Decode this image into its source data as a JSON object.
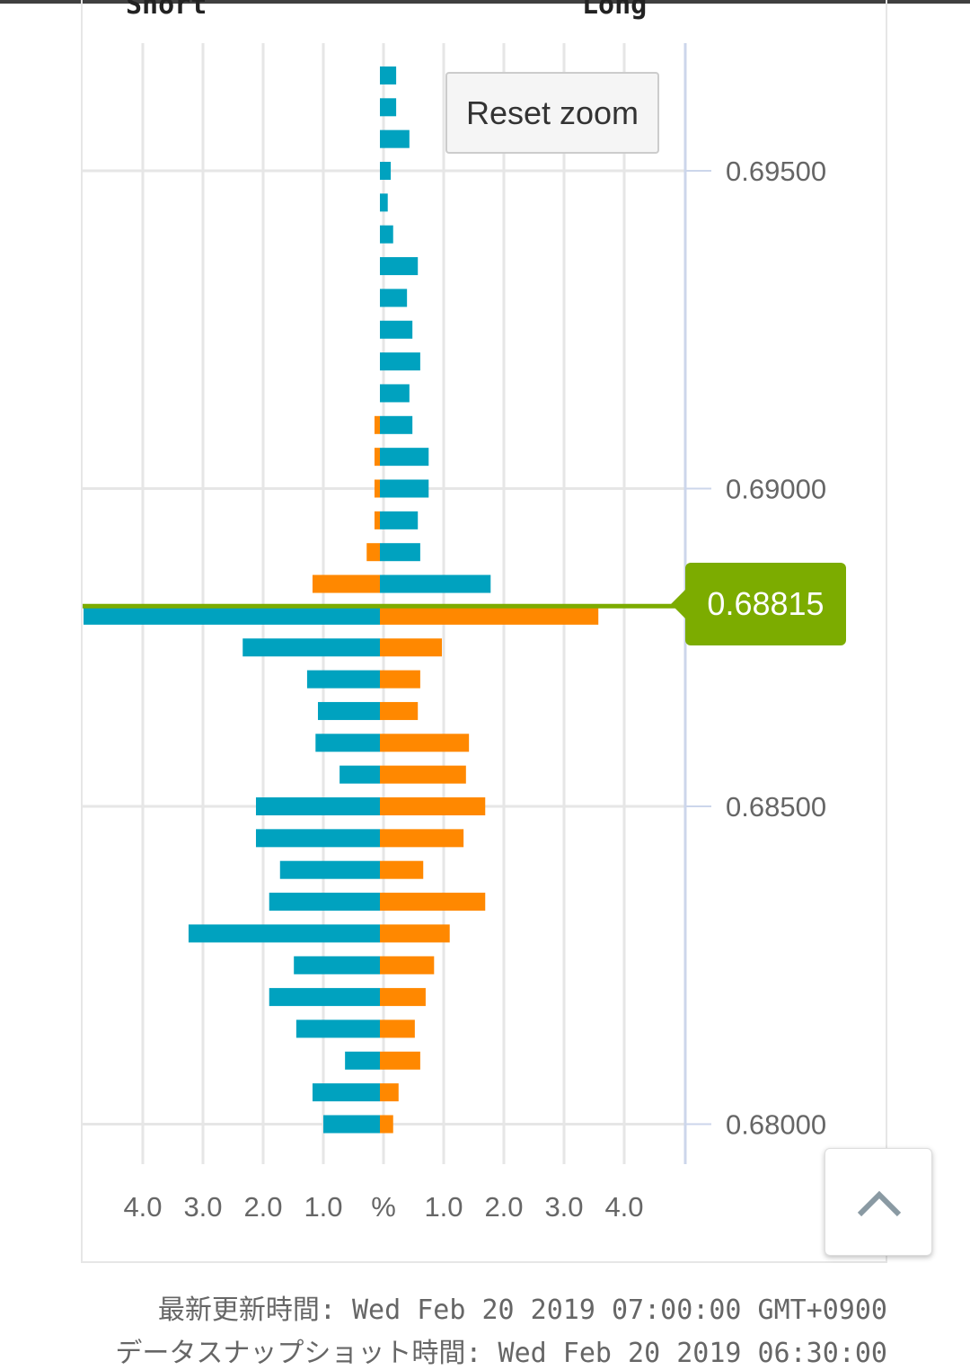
{
  "chart_data": {
    "type": "bar",
    "orientation": "horizontal-diverging",
    "left_label": "Short",
    "right_label": "Long",
    "xlabel": "%",
    "x_ticks_left": [
      "4.0",
      "3.0",
      "2.0",
      "1.0"
    ],
    "x_ticks_right": [
      "1.0",
      "2.0",
      "3.0",
      "4.0"
    ],
    "x_center_label": "%",
    "xlim": [
      -5,
      5
    ],
    "y_ticks": [
      "0.69500",
      "0.69000",
      "0.68500",
      "0.68000"
    ],
    "y_tick_values": [
      0.695,
      0.69,
      0.685,
      0.68
    ],
    "ylim": [
      0.6796,
      0.6972
    ],
    "current_price": 0.68815,
    "current_price_label": "0.68815",
    "grid": true,
    "prices": [
      0.6965,
      0.696,
      0.6955,
      0.695,
      0.6945,
      0.694,
      0.6935,
      0.693,
      0.6925,
      0.692,
      0.6915,
      0.691,
      0.6905,
      0.69,
      0.6895,
      0.689,
      0.6885,
      0.688,
      0.6875,
      0.687,
      0.6865,
      0.686,
      0.6855,
      0.685,
      0.6845,
      0.684,
      0.6835,
      0.683,
      0.6825,
      0.682,
      0.6815,
      0.681,
      0.6805,
      0.68
    ],
    "series": [
      {
        "name": "Short",
        "values": [
          0,
          0,
          0,
          0,
          0,
          0,
          0,
          0,
          0,
          0,
          0,
          0.09,
          0.09,
          0.09,
          0.09,
          0.22,
          1.12,
          4.93,
          2.28,
          1.21,
          1.03,
          1.07,
          0.67,
          2.06,
          2.06,
          1.66,
          1.84,
          3.18,
          1.43,
          1.84,
          1.39,
          0.58,
          1.12,
          0.94
        ]
      },
      {
        "name": "Long",
        "values": [
          0.27,
          0.27,
          0.49,
          0.18,
          0.13,
          0.22,
          0.63,
          0.45,
          0.54,
          0.67,
          0.49,
          0.54,
          0.81,
          0.81,
          0.63,
          0.67,
          1.84,
          3.63,
          1.03,
          0.67,
          0.63,
          1.48,
          1.43,
          1.75,
          1.39,
          0.72,
          1.75,
          1.16,
          0.9,
          0.76,
          0.58,
          0.67,
          0.31,
          0.22
        ]
      }
    ],
    "colors": {
      "blue": "#00a2bf",
      "orange": "#ff8800",
      "price_line": "#7cac00"
    }
  },
  "ui": {
    "reset_zoom": "Reset zoom",
    "footer_updated": "最新更新時間: Wed Feb 20 2019 07:00:00 GMT+0900",
    "footer_snapshot": "データスナップショット時間: Wed Feb 20 2019 06:30:00"
  }
}
